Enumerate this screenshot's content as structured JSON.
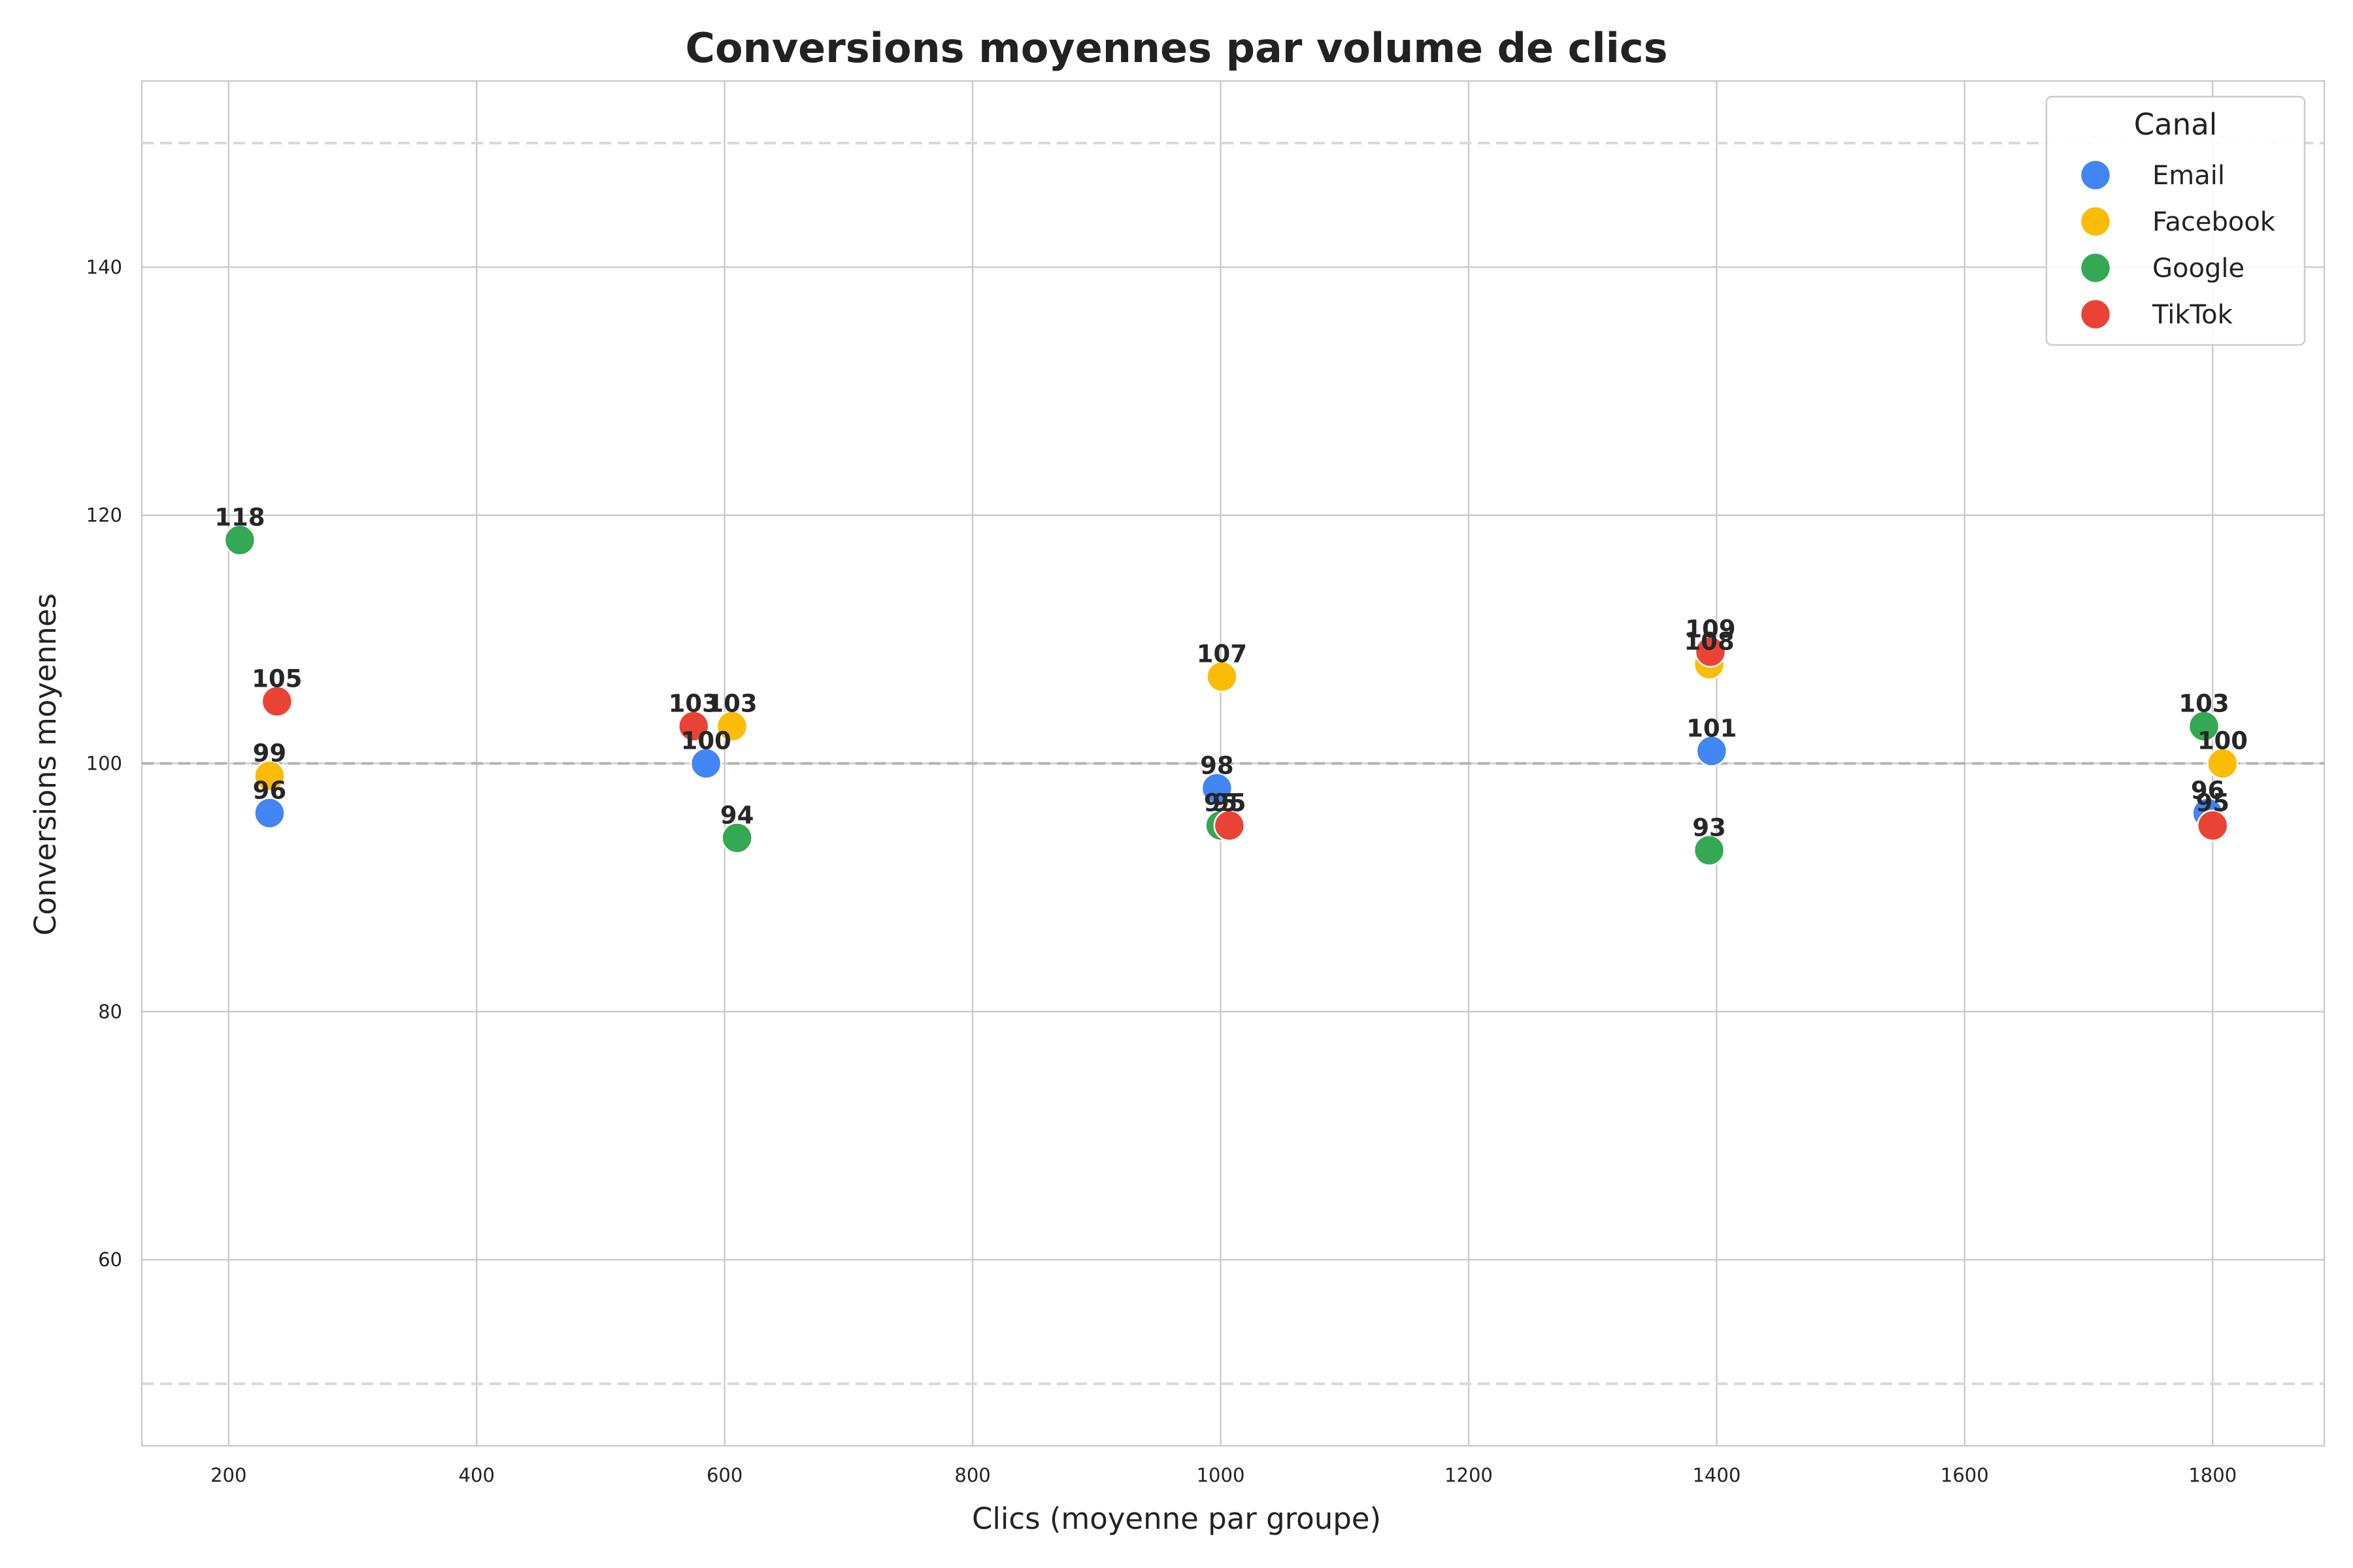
{
  "chart_data": {
    "type": "scatter",
    "title": "Conversions moyennes par volume de clics",
    "xlabel": "Clics (moyenne par groupe)",
    "ylabel": "Conversions moyennes",
    "xlim": [
      130,
      1890
    ],
    "ylim": [
      45,
      155
    ],
    "xticks": [
      200,
      400,
      600,
      800,
      1000,
      1200,
      1400,
      1600,
      1800
    ],
    "yticks": [
      60,
      80,
      100,
      120,
      140
    ],
    "grid": true,
    "reference_lines": [
      {
        "y": 150,
        "style": "dashed",
        "color": "#d9d9d9"
      },
      {
        "y": 100,
        "style": "dashed",
        "color": "#b3b3b3"
      },
      {
        "y": 50,
        "style": "dashed",
        "color": "#d9d9d9"
      }
    ],
    "legend": {
      "title": "Canal",
      "placement": "top-right"
    },
    "series": [
      {
        "name": "Email",
        "color": "#4285F4",
        "points": [
          {
            "x": 233,
            "y": 96,
            "label": "96"
          },
          {
            "x": 585,
            "y": 100,
            "label": "100"
          },
          {
            "x": 997,
            "y": 98,
            "label": "98"
          },
          {
            "x": 1396,
            "y": 101,
            "label": "101"
          },
          {
            "x": 1796,
            "y": 96,
            "label": "96"
          }
        ]
      },
      {
        "name": "Facebook",
        "color": "#FBBC05",
        "points": [
          {
            "x": 233,
            "y": 99,
            "label": "99"
          },
          {
            "x": 606,
            "y": 103,
            "label": "103"
          },
          {
            "x": 1001,
            "y": 107,
            "label": "107"
          },
          {
            "x": 1394,
            "y": 108,
            "label": "108"
          },
          {
            "x": 1808,
            "y": 100,
            "label": "100"
          }
        ]
      },
      {
        "name": "Google",
        "color": "#34A853",
        "points": [
          {
            "x": 209,
            "y": 118,
            "label": "118"
          },
          {
            "x": 610,
            "y": 94,
            "label": "94"
          },
          {
            "x": 1000,
            "y": 95,
            "label": "95"
          },
          {
            "x": 1394,
            "y": 93,
            "label": "93"
          },
          {
            "x": 1793,
            "y": 103,
            "label": "103"
          }
        ]
      },
      {
        "name": "TikTok",
        "color": "#EA4335",
        "points": [
          {
            "x": 239,
            "y": 105,
            "label": "105"
          },
          {
            "x": 575,
            "y": 103,
            "label": "103"
          },
          {
            "x": 1007,
            "y": 95,
            "label": "95"
          },
          {
            "x": 1395,
            "y": 109,
            "label": "109"
          },
          {
            "x": 1800,
            "y": 95,
            "label": "95"
          }
        ]
      }
    ]
  }
}
